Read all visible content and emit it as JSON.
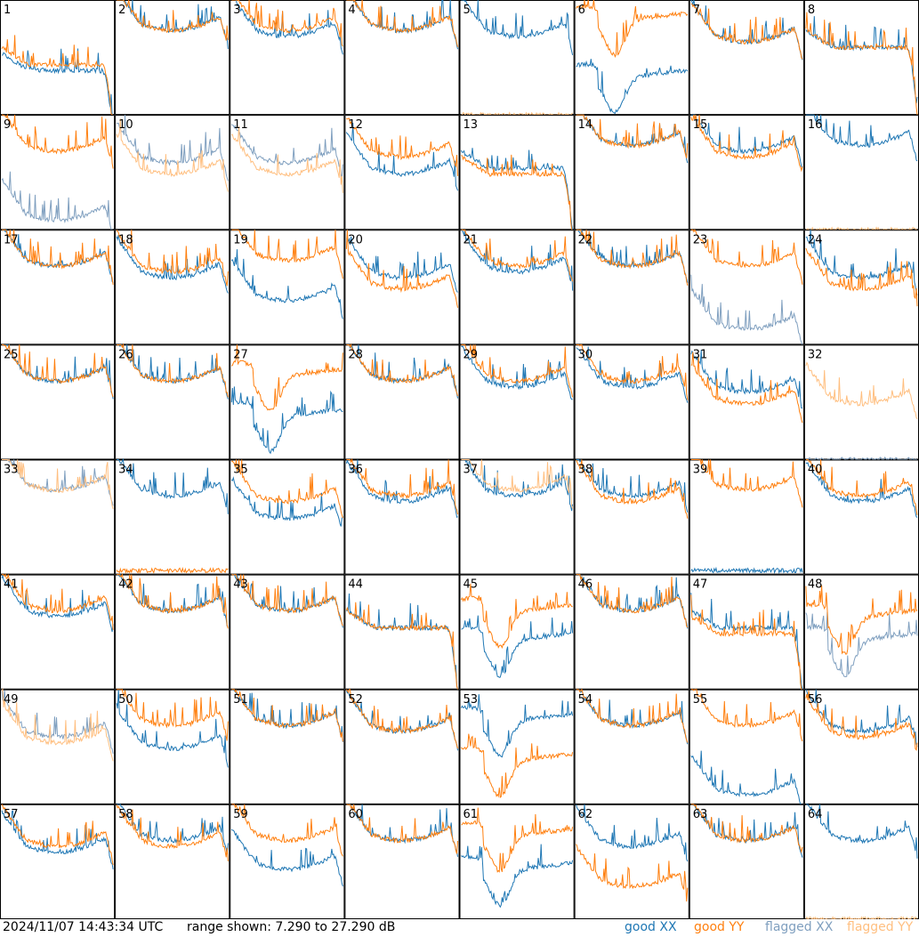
{
  "footer": {
    "timestamp": "2024/11/07 14:43:34 UTC",
    "range_label": "range shown: 7.290 to 27.290 dB"
  },
  "legend": [
    {
      "label": "good XX",
      "color": "#1f77b4"
    },
    {
      "label": "good YY",
      "color": "#ff7f0e"
    },
    {
      "label": "flagged XX",
      "color": "#7f9fbf"
    },
    {
      "label": "flagged YY",
      "color": "#ffbf80"
    }
  ],
  "chart_data": {
    "type": "line",
    "layout": "8x8 grid of small spectra, one per antenna",
    "ylim_db": [
      7.29,
      27.29
    ],
    "series_types": [
      "good XX",
      "good YY",
      "flagged XX",
      "flagged YY"
    ],
    "panels": [
      {
        "label": "1",
        "xx": "good",
        "yy": "good",
        "xx_level": 15,
        "yy_level": 16,
        "shape": "rolloff"
      },
      {
        "label": "2",
        "xx": "good",
        "yy": "good",
        "xx_level": 22,
        "yy_level": 22,
        "shape": "bowl"
      },
      {
        "label": "3",
        "xx": "good",
        "yy": "good",
        "xx_level": 21,
        "yy_level": 22,
        "shape": "bowl"
      },
      {
        "label": "4",
        "xx": "good",
        "yy": "good",
        "xx_level": 22,
        "yy_level": 22,
        "shape": "bowl"
      },
      {
        "label": "5",
        "xx": "good",
        "yy": "flagged",
        "xx_level": 21,
        "yy_level": 7.29,
        "shape": "bowl"
      },
      {
        "label": "6",
        "xx": "good",
        "yy": "good",
        "xx_level": 13,
        "yy_level": 23,
        "shape": "dip"
      },
      {
        "label": "7",
        "xx": "good",
        "yy": "good",
        "xx_level": 20,
        "yy_level": 20,
        "shape": "bowl"
      },
      {
        "label": "8",
        "xx": "good",
        "yy": "good",
        "xx_level": 19,
        "yy_level": 19,
        "shape": "rolloff"
      },
      {
        "label": "9",
        "xx": "flagged",
        "yy": "good",
        "xx_level": 9,
        "yy_level": 21,
        "shape": "bowl"
      },
      {
        "label": "10",
        "xx": "flagged",
        "yy": "flagged",
        "xx_level": 19,
        "yy_level": 17,
        "shape": "bowl"
      },
      {
        "label": "11",
        "xx": "flagged",
        "yy": "flagged",
        "xx_level": 19,
        "yy_level": 17,
        "shape": "bowl"
      },
      {
        "label": "12",
        "xx": "good",
        "yy": "good",
        "xx_level": 17,
        "yy_level": 20,
        "shape": "bowl"
      },
      {
        "label": "13",
        "xx": "good",
        "yy": "good",
        "xx_level": 18,
        "yy_level": 17,
        "shape": "rolloff"
      },
      {
        "label": "14",
        "xx": "good",
        "yy": "good",
        "xx_level": 22,
        "yy_level": 22,
        "shape": "bowl"
      },
      {
        "label": "15",
        "xx": "good",
        "yy": "good",
        "xx_level": 21,
        "yy_level": 20,
        "shape": "bowl"
      },
      {
        "label": "16",
        "xx": "good",
        "yy": "flagged",
        "xx_level": 22,
        "yy_level": 7.29,
        "shape": "bowl"
      },
      {
        "label": "17",
        "xx": "good",
        "yy": "good",
        "xx_level": 21,
        "yy_level": 21,
        "shape": "bowl"
      },
      {
        "label": "18",
        "xx": "good",
        "yy": "good",
        "xx_level": 19,
        "yy_level": 20,
        "shape": "bowl"
      },
      {
        "label": "19",
        "xx": "good",
        "yy": "good",
        "xx_level": 15,
        "yy_level": 22,
        "shape": "bowl"
      },
      {
        "label": "20",
        "xx": "good",
        "yy": "good",
        "xx_level": 19,
        "yy_level": 17,
        "shape": "bowl"
      },
      {
        "label": "21",
        "xx": "good",
        "yy": "good",
        "xx_level": 20,
        "yy_level": 21,
        "shape": "bowl"
      },
      {
        "label": "22",
        "xx": "good",
        "yy": "good",
        "xx_level": 21,
        "yy_level": 21,
        "shape": "bowl"
      },
      {
        "label": "23",
        "xx": "flagged",
        "yy": "good",
        "xx_level": 10,
        "yy_level": 21,
        "shape": "bowl"
      },
      {
        "label": "24",
        "xx": "good",
        "yy": "good",
        "xx_level": 19,
        "yy_level": 17,
        "shape": "bowl"
      },
      {
        "label": "25",
        "xx": "good",
        "yy": "good",
        "xx_level": 21,
        "yy_level": 21,
        "shape": "bowl"
      },
      {
        "label": "26",
        "xx": "good",
        "yy": "good",
        "xx_level": 21,
        "yy_level": 21,
        "shape": "bowl"
      },
      {
        "label": "27",
        "xx": "good",
        "yy": "good",
        "xx_level": 14,
        "yy_level": 21,
        "shape": "dip"
      },
      {
        "label": "28",
        "xx": "good",
        "yy": "good",
        "xx_level": 21,
        "yy_level": 21,
        "shape": "bowl"
      },
      {
        "label": "29",
        "xx": "good",
        "yy": "good",
        "xx_level": 20,
        "yy_level": 21,
        "shape": "bowl"
      },
      {
        "label": "30",
        "xx": "good",
        "yy": "good",
        "xx_level": 20,
        "yy_level": 21,
        "shape": "bowl"
      },
      {
        "label": "31",
        "xx": "good",
        "yy": "good",
        "xx_level": 19,
        "yy_level": 17,
        "shape": "bowl"
      },
      {
        "label": "32",
        "xx": "flagged",
        "yy": "flagged",
        "xx_level": 7.29,
        "yy_level": 17,
        "shape": "bowl"
      },
      {
        "label": "33",
        "xx": "flagged",
        "yy": "flagged",
        "xx_level": 22,
        "yy_level": 22,
        "shape": "bowl"
      },
      {
        "label": "34",
        "xx": "good",
        "yy": "good",
        "xx_level": 21,
        "yy_level": 8,
        "shape": "bowl"
      },
      {
        "label": "35",
        "xx": "good",
        "yy": "good",
        "xx_level": 17,
        "yy_level": 20,
        "shape": "bowl"
      },
      {
        "label": "36",
        "xx": "good",
        "yy": "good",
        "xx_level": 20,
        "yy_level": 21,
        "shape": "bowl"
      },
      {
        "label": "37",
        "xx": "good",
        "yy": "flagged",
        "xx_level": 21,
        "yy_level": 22,
        "shape": "bowl"
      },
      {
        "label": "38",
        "xx": "good",
        "yy": "good",
        "xx_level": 21,
        "yy_level": 20,
        "shape": "bowl"
      },
      {
        "label": "39",
        "xx": "good",
        "yy": "good",
        "xx_level": 8,
        "yy_level": 22,
        "shape": "bowl"
      },
      {
        "label": "40",
        "xx": "good",
        "yy": "good",
        "xx_level": 20,
        "yy_level": 21,
        "shape": "bowl"
      },
      {
        "label": "41",
        "xx": "good",
        "yy": "good",
        "xx_level": 20,
        "yy_level": 21,
        "shape": "bowl"
      },
      {
        "label": "42",
        "xx": "good",
        "yy": "good",
        "xx_level": 21,
        "yy_level": 21,
        "shape": "bowl"
      },
      {
        "label": "43",
        "xx": "good",
        "yy": "good",
        "xx_level": 21,
        "yy_level": 21,
        "shape": "bowl"
      },
      {
        "label": "44",
        "xx": "good",
        "yy": "good",
        "xx_level": 18,
        "yy_level": 18,
        "shape": "rolloff"
      },
      {
        "label": "45",
        "xx": "good",
        "yy": "good",
        "xx_level": 15,
        "yy_level": 20,
        "shape": "dip"
      },
      {
        "label": "46",
        "xx": "good",
        "yy": "good",
        "xx_level": 21,
        "yy_level": 21,
        "shape": "bowl"
      },
      {
        "label": "47",
        "xx": "good",
        "yy": "good",
        "xx_level": 18,
        "yy_level": 17,
        "shape": "rolloff"
      },
      {
        "label": "48",
        "xx": "flagged",
        "yy": "good",
        "xx_level": 15,
        "yy_level": 19,
        "shape": "dip"
      },
      {
        "label": "49",
        "xx": "flagged",
        "yy": "flagged",
        "xx_level": 19,
        "yy_level": 18,
        "shape": "bowl"
      },
      {
        "label": "50",
        "xx": "good",
        "yy": "good",
        "xx_level": 17,
        "yy_level": 21,
        "shape": "bowl"
      },
      {
        "label": "51",
        "xx": "good",
        "yy": "good",
        "xx_level": 21,
        "yy_level": 21,
        "shape": "bowl"
      },
      {
        "label": "52",
        "xx": "good",
        "yy": "good",
        "xx_level": 20,
        "yy_level": 20,
        "shape": "bowl"
      },
      {
        "label": "53",
        "xx": "good",
        "yy": "good",
        "xx_level": 21,
        "yy_level": 14,
        "shape": "dip"
      },
      {
        "label": "54",
        "xx": "good",
        "yy": "good",
        "xx_level": 21,
        "yy_level": 21,
        "shape": "bowl"
      },
      {
        "label": "55",
        "xx": "good",
        "yy": "good",
        "xx_level": 9,
        "yy_level": 21,
        "shape": "bowl"
      },
      {
        "label": "56",
        "xx": "good",
        "yy": "good",
        "xx_level": 20,
        "yy_level": 19,
        "shape": "bowl"
      },
      {
        "label": "57",
        "xx": "good",
        "yy": "good",
        "xx_level": 19,
        "yy_level": 20,
        "shape": "bowl"
      },
      {
        "label": "58",
        "xx": "good",
        "yy": "good",
        "xx_level": 21,
        "yy_level": 20,
        "shape": "bowl"
      },
      {
        "label": "59",
        "xx": "good",
        "yy": "good",
        "xx_level": 16,
        "yy_level": 21,
        "shape": "bowl"
      },
      {
        "label": "60",
        "xx": "good",
        "yy": "good",
        "xx_level": 21,
        "yy_level": 21,
        "shape": "bowl"
      },
      {
        "label": "61",
        "xx": "good",
        "yy": "good",
        "xx_level": 15,
        "yy_level": 21,
        "shape": "dip"
      },
      {
        "label": "62",
        "xx": "good",
        "yy": "good",
        "xx_level": 20,
        "yy_level": 13,
        "shape": "bowl"
      },
      {
        "label": "63",
        "xx": "good",
        "yy": "good",
        "xx_level": 21,
        "yy_level": 21,
        "shape": "bowl"
      },
      {
        "label": "64",
        "xx": "good",
        "yy": "flagged",
        "xx_level": 21,
        "yy_level": 7.29,
        "shape": "bowl"
      }
    ]
  }
}
